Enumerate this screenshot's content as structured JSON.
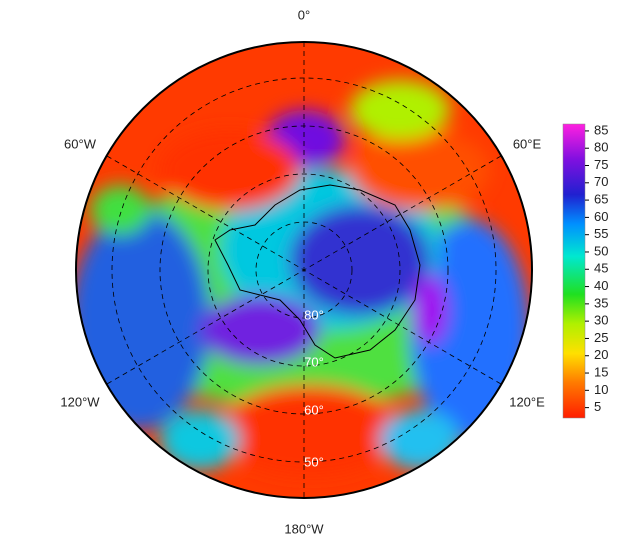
{
  "map": {
    "longitude_labels": [
      "0°",
      "60°W",
      "60°E",
      "120°W",
      "120°E",
      "180°W"
    ],
    "latitude_labels": [
      "80°",
      "70°",
      "60°",
      "50°"
    ],
    "colorbar": {
      "ticks": [
        5,
        10,
        15,
        20,
        25,
        30,
        35,
        40,
        45,
        50,
        55,
        60,
        65,
        70,
        75,
        80,
        85
      ],
      "lim": [
        2,
        87
      ]
    }
  }
}
